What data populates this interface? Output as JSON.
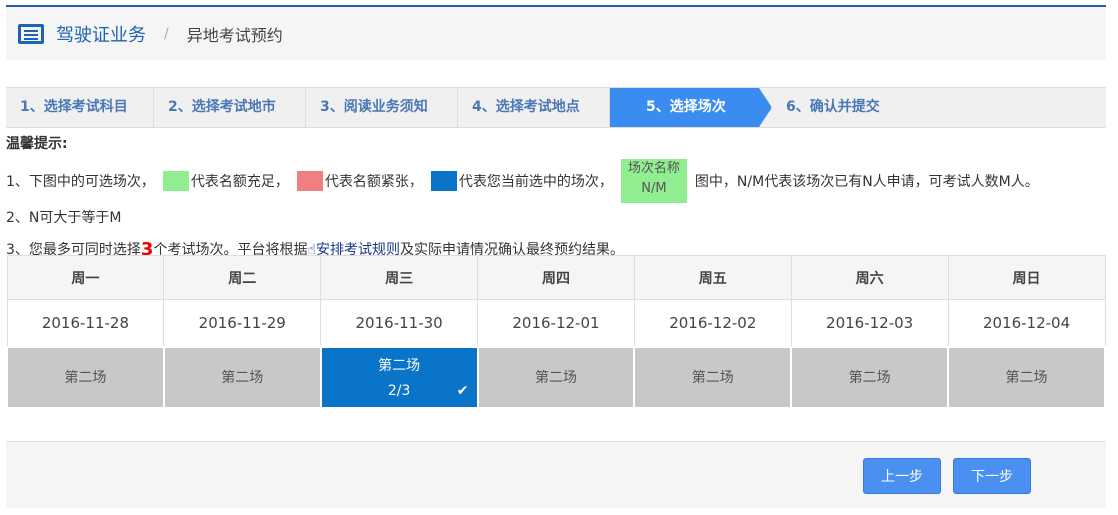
{
  "header": {
    "title": "驾驶证业务",
    "separator": "/",
    "subtitle": "异地考试预约"
  },
  "steps": [
    "1、选择考试科目",
    "2、选择考试地市",
    "3、阅读业务须知",
    "4、选择考试地点",
    "5、选择场次",
    "6、确认并提交"
  ],
  "active_step": 4,
  "tips": {
    "title": "温馨提示:",
    "l1a": "1、下图中的可选场次，",
    "l1b": "代表名额充足，",
    "l1c": "代表名额紧张，",
    "l1d": "代表您当前选中的场次，",
    "legend_name": "场次名称",
    "legend_nm": "N/M",
    "l1e": "图中，N/M代表该场次已有N人申请，可考试人数M人。",
    "l2": "2、N可大于等于M",
    "l3a": "3、您最多可同时选择",
    "l3num": "3",
    "l3b": "个考试场次。平台将根据",
    "l3link": "☝安排考试规则",
    "l3c": "及实际申请情况确认最终预约结果。"
  },
  "colors": {
    "sufficient": "#90ee90",
    "tight": "#f08080",
    "selected": "#0a74c8"
  },
  "days": [
    "周一",
    "周二",
    "周三",
    "周四",
    "周五",
    "周六",
    "周日"
  ],
  "dates": [
    "2016-11-28",
    "2016-11-29",
    "2016-11-30",
    "2016-12-01",
    "2016-12-02",
    "2016-12-03",
    "2016-12-04"
  ],
  "sessions": [
    "第二场",
    "第二场",
    "第二场",
    "第二场",
    "第二场",
    "第二场",
    "第二场"
  ],
  "selected": {
    "index": 2,
    "count": "2/3",
    "icon": "check-icon"
  },
  "buttons": {
    "prev": "上一步",
    "next": "下一步"
  }
}
